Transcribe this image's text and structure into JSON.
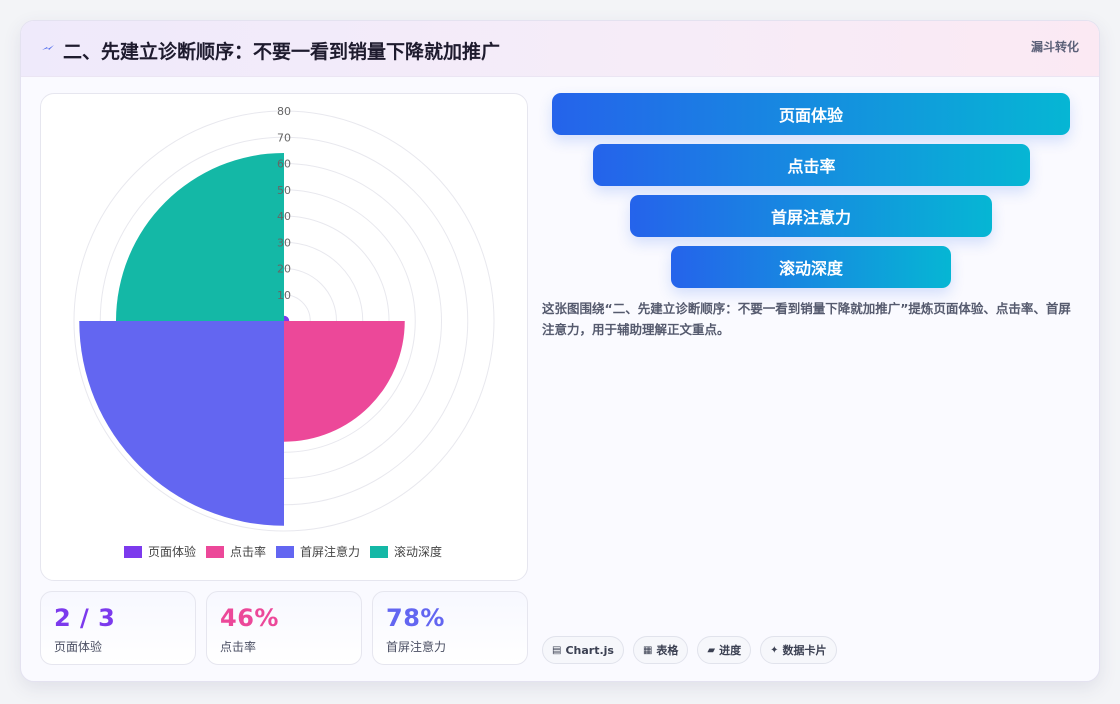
{
  "header": {
    "title": "二、先建立诊断顺序：不要一看到销量下降就加推广",
    "tag": "漏斗转化"
  },
  "chart_data": {
    "type": "polarArea",
    "categories": [
      "页面体验",
      "点击率",
      "首屏注意力",
      "滚动深度"
    ],
    "values": [
      2,
      46,
      78,
      64
    ],
    "colors": [
      "#7c3aed",
      "#ec4899",
      "#6366f1",
      "#14b8a6"
    ],
    "radial_ticks": [
      "80",
      "70",
      "60",
      "50",
      "40",
      "30",
      "20",
      "10"
    ],
    "r_max": 80,
    "legend_position": "bottom",
    "grid": true
  },
  "stats": [
    {
      "value": "2 / 3",
      "label": "页面体验",
      "color": "#7c3aed"
    },
    {
      "value": "46%",
      "label": "点击率",
      "color": "#ec4899"
    },
    {
      "value": "78%",
      "label": "首屏注意力",
      "color": "#6366f1"
    }
  ],
  "funnel": [
    "页面体验",
    "点击率",
    "首屏注意力",
    "滚动深度"
  ],
  "description": "这张图围绕“二、先建立诊断顺序：不要一看到销量下降就加推广”提炼页面体验、点击率、首屏注意力，用于辅助理解正文重点。",
  "chips": [
    {
      "icon": "chart-icon",
      "glyph": "▤",
      "label": "Chart.js"
    },
    {
      "icon": "table-icon",
      "glyph": "▦",
      "label": "表格"
    },
    {
      "icon": "progress-icon",
      "glyph": "▰",
      "label": "进度"
    },
    {
      "icon": "sparkle-icon",
      "glyph": "✦",
      "label": "数据卡片"
    }
  ]
}
